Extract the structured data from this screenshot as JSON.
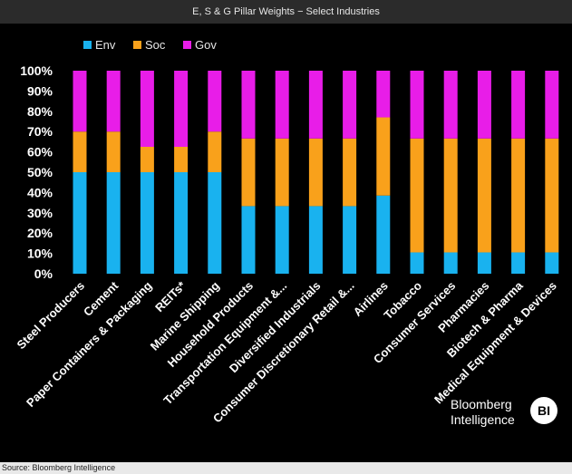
{
  "header": {
    "title": "E, S & G Pillar Weights − Select Industries"
  },
  "footer": {
    "source": "Source: Bloomberg Intelligence"
  },
  "branding": {
    "line1": "Bloomberg",
    "line2": "Intelligence",
    "badge": "BI"
  },
  "chart_data": {
    "type": "bar",
    "stacked": true,
    "title": "",
    "xlabel": "",
    "ylabel": "",
    "ylim": [
      0,
      100
    ],
    "y_ticks": [
      "0%",
      "10%",
      "20%",
      "30%",
      "40%",
      "50%",
      "60%",
      "70%",
      "80%",
      "90%",
      "100%"
    ],
    "grid": false,
    "legend_position": "top-left",
    "categories": [
      "Steel Producers",
      "Cement",
      "Paper Containers & Packaging",
      "REITs*",
      "Marine Shipping",
      "Household Products",
      "Transportation Equipment &...",
      "Diversified Industrials",
      "Consumer Discretionary Retail &...",
      "Airlines",
      "Tobacco",
      "Consumer Services",
      "Pharmacies",
      "Biotech & Pharma",
      "Medical Equipment & Devices"
    ],
    "series": [
      {
        "name": "Env",
        "color": "#19b2ef",
        "values": [
          50,
          50,
          50,
          50,
          50,
          33.3,
          33.3,
          33.3,
          33.3,
          38.5,
          10.5,
          10.5,
          10.5,
          10.5,
          10.5
        ]
      },
      {
        "name": "Soc",
        "color": "#f9a11b",
        "values": [
          20,
          20,
          12.5,
          12.5,
          20,
          33.3,
          33.3,
          33.3,
          33.3,
          38.5,
          56.1,
          56.1,
          56.1,
          56.1,
          56.1
        ]
      },
      {
        "name": "Gov",
        "color": "#e81de8",
        "values": [
          30,
          30,
          37.5,
          37.5,
          30,
          33.4,
          33.4,
          33.4,
          33.4,
          23,
          33.4,
          33.4,
          33.4,
          33.4,
          33.4
        ]
      }
    ]
  }
}
